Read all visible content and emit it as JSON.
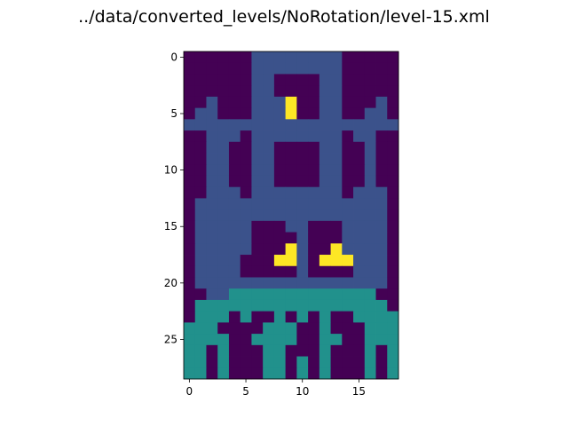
{
  "title": "../data/converted_levels/NoRotation/level-15.xml",
  "chart_data": {
    "type": "heatmap",
    "title": "../data/converted_levels/NoRotation/level-15.xml",
    "xlabel": "",
    "ylabel": "",
    "rows": 29,
    "cols": 19,
    "x_ticks": [
      0,
      5,
      10,
      15
    ],
    "y_ticks": [
      0,
      5,
      10,
      15,
      20,
      25
    ],
    "grid": false,
    "colormap": "viridis",
    "legend": "none",
    "value_colors": {
      "0": "#440154",
      "1": "#3b528b",
      "2": "#21918c",
      "3": "#fde725"
    },
    "grid_rows": [
      "0000001111111100000",
      "0000001111111100000",
      "0000001100001100000",
      "0000001100001100000",
      "0010001113001100010",
      "0110001113001100110",
      "1111111111111111111",
      "0011101111111101100",
      "0011001100001100100",
      "0011001100001100100",
      "0011001100001100100",
      "0011001100001100100",
      "0011101111111101110",
      "0111111111111111110",
      "0111111111111111110",
      "0111110001100011110",
      "0111110000100011110",
      "0111110003100311110",
      "0111100033103331110",
      "0111100000100001110",
      "0111111111111111110",
      "0011222222222222200",
      "0222222222222222220",
      "0222020020202002222",
      "2220000222002000222",
      "2222002222002200222",
      "2202000220002000202",
      "2202000220202000202",
      "2202000220202000202"
    ]
  }
}
